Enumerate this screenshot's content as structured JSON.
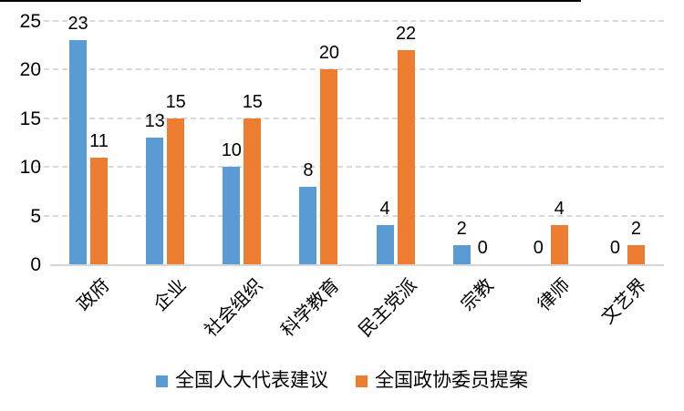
{
  "chart_data": {
    "type": "bar",
    "title": "",
    "xlabel": "",
    "ylabel": "",
    "categories": [
      "政府",
      "企业",
      "社会组织",
      "科学教育",
      "民主党派",
      "宗教",
      "律师",
      "文艺界"
    ],
    "series": [
      {
        "name": "全国人大代表建议",
        "color": "#5B9BD5",
        "values": [
          23,
          13,
          10,
          8,
          4,
          2,
          0,
          0
        ]
      },
      {
        "name": "全国政协委员提案",
        "color": "#ED7D31",
        "values": [
          11,
          15,
          15,
          20,
          22,
          0,
          4,
          2
        ]
      }
    ],
    "ylim": [
      0,
      25
    ],
    "yticks": [
      0,
      5,
      10,
      15,
      20,
      25
    ],
    "grid": "horizontal-dashed",
    "gridline_color": "#D9D9D9",
    "axis_line_color": "#D6D6D6",
    "text_color": "#000000",
    "legend_position": "bottom",
    "data_labels": true
  }
}
